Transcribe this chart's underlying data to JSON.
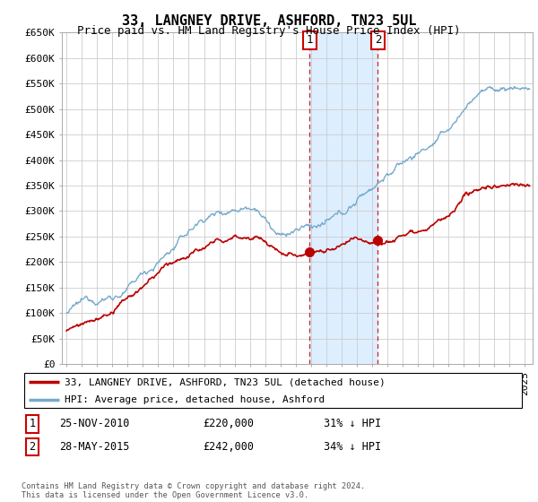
{
  "title": "33, LANGNEY DRIVE, ASHFORD, TN23 5UL",
  "subtitle": "Price paid vs. HM Land Registry's House Price Index (HPI)",
  "ylabel_ticks": [
    "£0",
    "£50K",
    "£100K",
    "£150K",
    "£200K",
    "£250K",
    "£300K",
    "£350K",
    "£400K",
    "£450K",
    "£500K",
    "£550K",
    "£600K",
    "£650K"
  ],
  "ylim": [
    0,
    650000
  ],
  "yticks": [
    0,
    50000,
    100000,
    150000,
    200000,
    250000,
    300000,
    350000,
    400000,
    450000,
    500000,
    550000,
    600000,
    650000
  ],
  "xlim_start": 1994.7,
  "xlim_end": 2025.5,
  "transaction1": {
    "label": "1",
    "date_num": 2010.9,
    "price": 220000,
    "date_str": "25-NOV-2010",
    "price_str": "£220,000",
    "hpi_str": "31% ↓ HPI"
  },
  "transaction2": {
    "label": "2",
    "date_num": 2015.38,
    "price": 242000,
    "date_str": "28-MAY-2015",
    "price_str": "£242,000",
    "hpi_str": "34% ↓ HPI"
  },
  "red_line_color": "#bb0000",
  "blue_line_color": "#77aacc",
  "dashed_line_color": "#cc2222",
  "highlight_color": "#ddeeff",
  "legend_label_red": "33, LANGNEY DRIVE, ASHFORD, TN23 5UL (detached house)",
  "legend_label_blue": "HPI: Average price, detached house, Ashford",
  "footer_text": "Contains HM Land Registry data © Crown copyright and database right 2024.\nThis data is licensed under the Open Government Licence v3.0.",
  "background_color": "#ffffff",
  "grid_color": "#cccccc",
  "title_fontsize": 11,
  "subtitle_fontsize": 9,
  "tick_fontsize": 8
}
